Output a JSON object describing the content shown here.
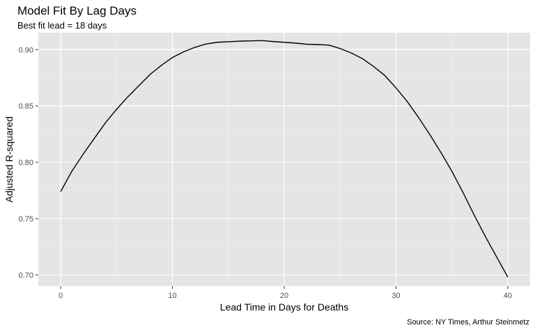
{
  "chart_data": {
    "type": "line",
    "title": "Model Fit By Lag Days",
    "subtitle": "Best fit lead = 18 days",
    "xlabel": "Lead Time in Days for Deaths",
    "ylabel": "Adjusted R-squared",
    "caption": "Source: NY Times, Arthur Steinmetz",
    "xlim": [
      -2,
      42
    ],
    "ylim": [
      0.69,
      0.915
    ],
    "x_ticks": [
      0,
      10,
      20,
      30,
      40
    ],
    "x_tick_labels": [
      "0",
      "10",
      "20",
      "30",
      "40"
    ],
    "y_ticks": [
      0.7,
      0.75,
      0.8,
      0.85,
      0.9
    ],
    "y_tick_labels": [
      "0.70",
      "0.75",
      "0.80",
      "0.85",
      "0.90"
    ],
    "grid": true,
    "background": "#e5e5e5",
    "line_color": "#000000",
    "series": [
      {
        "x": [
          0,
          1,
          2,
          3,
          4,
          5,
          6,
          7,
          8,
          9,
          10,
          11,
          12,
          13,
          14,
          15,
          16,
          17,
          18,
          19,
          20,
          21,
          22,
          23,
          24,
          25,
          26,
          27,
          28,
          29,
          30,
          31,
          32,
          33,
          34,
          35,
          36,
          37,
          38,
          39,
          40
        ],
        "values": [
          0.774,
          0.792,
          0.807,
          0.821,
          0.835,
          0.847,
          0.858,
          0.868,
          0.878,
          0.886,
          0.893,
          0.898,
          0.902,
          0.905,
          0.9065,
          0.907,
          0.9075,
          0.9078,
          0.908,
          0.9072,
          0.9065,
          0.9058,
          0.9048,
          0.9045,
          0.904,
          0.901,
          0.897,
          0.892,
          0.885,
          0.877,
          0.866,
          0.854,
          0.84,
          0.825,
          0.809,
          0.792,
          0.773,
          0.753,
          0.734,
          0.716,
          0.698
        ]
      }
    ]
  }
}
